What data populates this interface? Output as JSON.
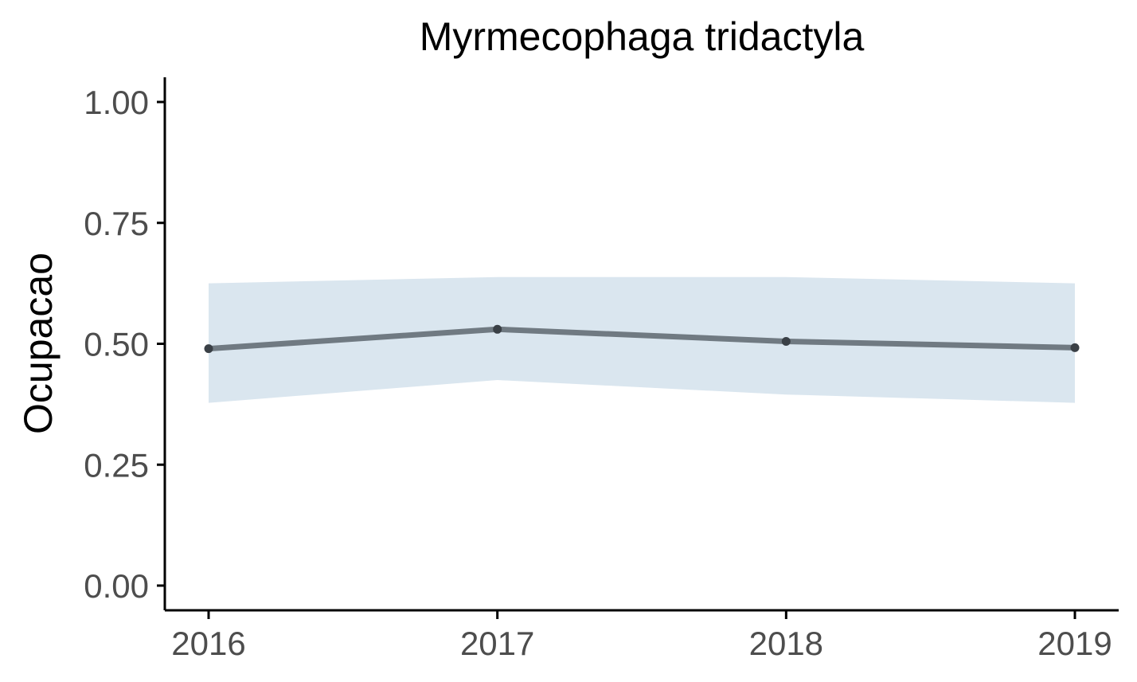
{
  "chart_data": {
    "type": "line",
    "title": "Myrmecophaga tridactyla",
    "xlabel": "",
    "ylabel": "Ocupacao",
    "x": [
      2016,
      2017,
      2018,
      2019
    ],
    "x_tick_labels": [
      "2016",
      "2017",
      "2018",
      "2019"
    ],
    "ylim": [
      0,
      1
    ],
    "y_ticks": [
      0,
      0.25,
      0.5,
      0.75,
      1
    ],
    "y_tick_labels": [
      "0.00",
      "0.25",
      "0.50",
      "0.75",
      "1.00"
    ],
    "series": [
      {
        "values": [
          0.49,
          0.53,
          0.505,
          0.492
        ],
        "lower": [
          0.378,
          0.425,
          0.395,
          0.378
        ],
        "upper": [
          0.625,
          0.638,
          0.638,
          0.625
        ]
      }
    ],
    "grid": false,
    "legend": "none",
    "colors": {
      "line": "#707a82",
      "points": "#3a4046",
      "ribbon": "#dae6ef",
      "axis": "#000000",
      "tick_text": "#4d4d4d"
    }
  }
}
